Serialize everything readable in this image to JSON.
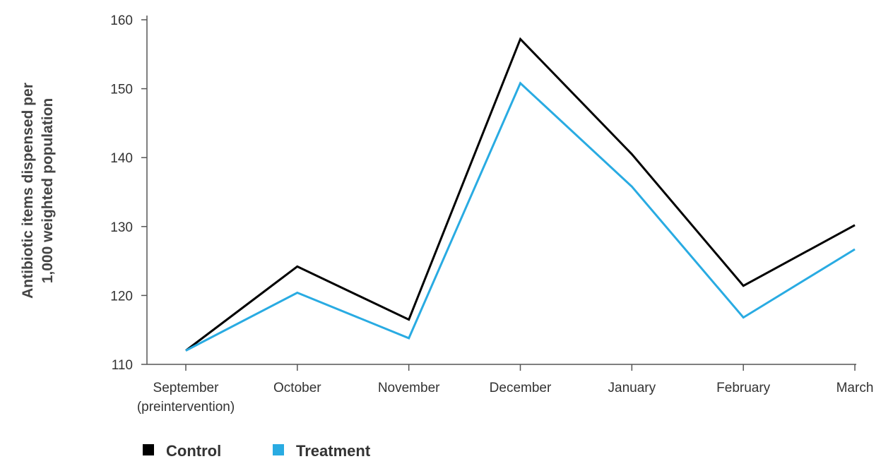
{
  "chart_data": {
    "type": "line",
    "categories": [
      [
        "September",
        "(preintervention)"
      ],
      [
        "October"
      ],
      [
        "November"
      ],
      [
        "December"
      ],
      [
        "January"
      ],
      [
        "February"
      ],
      [
        "March"
      ]
    ],
    "ylabel": [
      "Antibiotic items dispensed per",
      "1,000 weighted population"
    ],
    "xlabel": "",
    "ylim": [
      110,
      160
    ],
    "yticks": [
      110,
      120,
      130,
      140,
      150,
      160
    ],
    "grid": false,
    "legend_position": "bottom-left",
    "series": [
      {
        "name": "Control",
        "color": "#000000",
        "values": [
          112.0,
          124.2,
          116.5,
          157.2,
          140.5,
          121.4,
          130.2
        ]
      },
      {
        "name": "Treatment",
        "color": "#29ABE2",
        "values": [
          112.0,
          120.4,
          113.8,
          150.8,
          135.8,
          116.8,
          126.7
        ]
      }
    ]
  }
}
